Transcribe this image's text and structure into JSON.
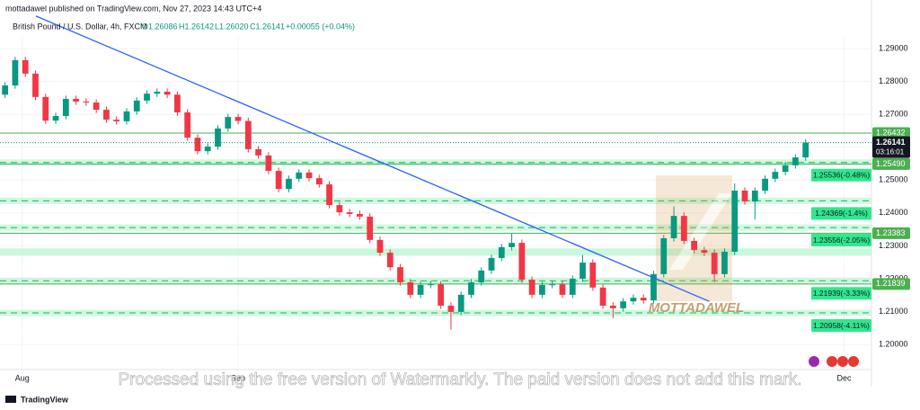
{
  "header": {
    "published": "mottadawel published on TradingView.com, Nov 27, 2023 14:43 UTC+4",
    "symbol": "British Pound / U.S. Dollar, 4h, FXCM",
    "ohlc": [
      "O1.26086",
      "H1.26142",
      "L1.26020",
      "C1.26141"
    ],
    "change": "+0.00055 (+0.04%)"
  },
  "chart_data": {
    "type": "candlestick",
    "open": [
      1.276,
      1.2788,
      1.2865,
      1.2824,
      1.2753,
      1.2681,
      1.2695,
      1.2747,
      1.2739,
      1.2736,
      1.2714,
      1.2684,
      1.2679,
      1.2709,
      1.2742,
      1.2763,
      1.2769,
      1.276,
      1.2706,
      1.2629,
      1.2588,
      1.2602,
      1.2657,
      1.2692,
      1.268,
      1.2594,
      1.2575,
      1.2528,
      1.2473,
      1.2504,
      1.2523,
      1.2506,
      1.2487,
      1.2424,
      1.2402,
      1.2397,
      1.2389,
      1.2318,
      1.2279,
      1.2235,
      1.2189,
      1.2151,
      1.2181,
      1.2183,
      1.2118,
      1.2099,
      1.2151,
      1.2189,
      1.2225,
      1.2263,
      1.2296,
      1.2309,
      1.2197,
      1.2151,
      1.2181,
      1.2183,
      1.2151,
      1.22,
      1.2249,
      1.2173,
      1.2118,
      1.211,
      1.2131,
      1.2142,
      1.2134,
      1.2214,
      1.2323,
      1.2391,
      1.2315,
      1.2287,
      1.2279,
      1.2214,
      1.2282,
      1.2468,
      1.2435,
      1.2468,
      1.2504,
      1.2525,
      1.2545,
      1.2569
    ],
    "high": [
      1.2798,
      1.2875,
      1.2875,
      1.2834,
      1.2763,
      1.2705,
      1.2757,
      1.2757,
      1.2749,
      1.2746,
      1.2724,
      1.2694,
      1.2719,
      1.2752,
      1.2773,
      1.2779,
      1.2779,
      1.277,
      1.2716,
      1.2639,
      1.2612,
      1.2667,
      1.2702,
      1.2702,
      1.269,
      1.2604,
      1.2585,
      1.2538,
      1.2514,
      1.2533,
      1.2533,
      1.2516,
      1.2497,
      1.2434,
      1.2412,
      1.2407,
      1.2399,
      1.2328,
      1.2289,
      1.2245,
      1.2199,
      1.2191,
      1.2193,
      1.2193,
      1.2128,
      1.2161,
      1.2199,
      1.2235,
      1.2273,
      1.2306,
      1.2337,
      1.2319,
      1.2207,
      1.2191,
      1.2193,
      1.2193,
      1.221,
      1.2272,
      1.2259,
      1.2183,
      1.2128,
      1.2141,
      1.2152,
      1.2152,
      1.2224,
      1.2333,
      1.242,
      1.2401,
      1.2325,
      1.2297,
      1.2289,
      1.2292,
      1.249,
      1.2478,
      1.2478,
      1.2514,
      1.2535,
      1.2555,
      1.2579,
      1.2624
    ],
    "low": [
      1.275,
      1.2778,
      1.2814,
      1.2743,
      1.2671,
      1.2671,
      1.2685,
      1.2729,
      1.2726,
      1.2704,
      1.2674,
      1.2669,
      1.2669,
      1.2699,
      1.2732,
      1.2753,
      1.275,
      1.2696,
      1.2619,
      1.2578,
      1.2578,
      1.2592,
      1.2647,
      1.267,
      1.2584,
      1.2565,
      1.2518,
      1.2463,
      1.2463,
      1.2494,
      1.2496,
      1.2477,
      1.2414,
      1.2392,
      1.2387,
      1.2379,
      1.2308,
      1.2269,
      1.2225,
      1.2179,
      1.2141,
      1.2141,
      1.2171,
      1.2108,
      1.2045,
      1.2089,
      1.2141,
      1.2179,
      1.2215,
      1.2253,
      1.2286,
      1.2187,
      1.2141,
      1.2141,
      1.2171,
      1.2141,
      1.2141,
      1.219,
      1.2163,
      1.2108,
      1.208,
      1.21,
      1.2121,
      1.2124,
      1.2124,
      1.2204,
      1.2313,
      1.2305,
      1.2277,
      1.2269,
      1.219,
      1.2204,
      1.2272,
      1.2425,
      1.238,
      1.2458,
      1.2494,
      1.2515,
      1.2535,
      1.2559
    ],
    "close": [
      1.2788,
      1.2865,
      1.2824,
      1.2753,
      1.2681,
      1.2695,
      1.2747,
      1.2739,
      1.2736,
      1.2714,
      1.2684,
      1.2679,
      1.2709,
      1.2742,
      1.2763,
      1.2769,
      1.276,
      1.2706,
      1.2629,
      1.2588,
      1.2602,
      1.2657,
      1.2692,
      1.268,
      1.2594,
      1.2575,
      1.2528,
      1.2473,
      1.2504,
      1.2523,
      1.2506,
      1.2487,
      1.2424,
      1.2402,
      1.2397,
      1.2389,
      1.2318,
      1.2279,
      1.2235,
      1.2189,
      1.2151,
      1.2181,
      1.2183,
      1.2118,
      1.2099,
      1.2151,
      1.2189,
      1.2225,
      1.2263,
      1.2296,
      1.2309,
      1.2197,
      1.2151,
      1.2181,
      1.2183,
      1.2151,
      1.22,
      1.2249,
      1.2173,
      1.2118,
      1.211,
      1.2131,
      1.2142,
      1.2134,
      1.2214,
      1.2323,
      1.2391,
      1.2315,
      1.2287,
      1.2279,
      1.2214,
      1.2282,
      1.2468,
      1.2435,
      1.2468,
      1.2504,
      1.2525,
      1.2545,
      1.2569,
      1.2614
    ],
    "up_color": "#089981",
    "down_color": "#f23645",
    "xlim": [
      -0.5,
      85.5
    ],
    "xticks": [
      {
        "value": 1.7,
        "label": "Aug"
      },
      {
        "value": 23,
        "label": "Sep"
      },
      {
        "value": 82.8,
        "label": "Dec"
      }
    ],
    "ylim": [
      1.194,
      1.3048
    ],
    "yticks": [
      {
        "value": 1.2,
        "label": "1.20000"
      },
      {
        "value": 1.21,
        "label": "1.21000"
      },
      {
        "value": 1.22,
        "label": "1.22000"
      },
      {
        "value": 1.23,
        "label": "1.23000"
      },
      {
        "value": 1.24,
        "label": "1.24000"
      },
      {
        "value": 1.25,
        "label": "1.25000"
      },
      {
        "value": 1.26,
        "label": "1.26000"
      },
      {
        "value": 1.27,
        "label": "1.27000"
      },
      {
        "value": 1.28,
        "label": "1.28000"
      },
      {
        "value": 1.29,
        "label": "1.29000"
      }
    ],
    "grid": true,
    "levels": [
      1.26432,
      {
        "value": 1.2549,
        "label": "1.25490"
      },
      1.23383,
      1.21839
    ],
    "level_color": "#4caf50",
    "targets": [
      {
        "value": 1.25536,
        "label": "1.25536(-0.48%)"
      },
      {
        "value": 1.24369,
        "label": "1.24369(-1.4%)"
      },
      {
        "value": 1.23556,
        "label": "1.23556(-2.05%)"
      },
      {
        "value": 1.21939,
        "label": "1.21939(-3.33%)"
      },
      {
        "value": 1.20958,
        "label": "1.20958(-4.11%)"
      }
    ],
    "target_color": "#2ee88a",
    "zone": [
      1.227,
      1.2292
    ],
    "zone_color": "#b9f6d2",
    "last_price": 1.26141,
    "timer": "03:16:01",
    "trendline": {
      "x": [
        3.05,
        69.5
      ],
      "y": [
        1.2999,
        1.2131
      ],
      "color": "#2962ff"
    }
  },
  "watermark_logo": "MOTTADAWEL",
  "watermark_note": "Processed using the free version of Watermarkly. The paid version does not add this mark.",
  "footer": "TradingView"
}
